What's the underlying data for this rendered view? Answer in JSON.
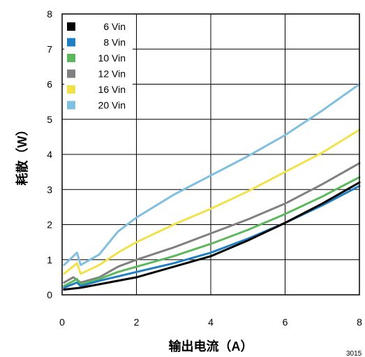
{
  "chart_data": {
    "type": "line",
    "title": "",
    "xlabel": "输出电流（A）",
    "ylabel": "耗散（W）",
    "xlim": [
      0,
      8
    ],
    "ylim": [
      0,
      8
    ],
    "xticks": [
      0,
      2,
      4,
      6,
      8
    ],
    "yticks": [
      0,
      1,
      2,
      3,
      4,
      5,
      6,
      7,
      8
    ],
    "grid": true,
    "legend_position": "top-left",
    "figure_code": "3015",
    "series": [
      {
        "name": "6 Vin",
        "color": "#000000",
        "x": [
          0.05,
          0.5,
          1,
          2,
          3,
          4,
          5,
          6,
          7,
          8
        ],
        "y": [
          0.15,
          0.2,
          0.3,
          0.5,
          0.8,
          1.1,
          1.55,
          2.05,
          2.6,
          3.2
        ]
      },
      {
        "name": "8 Vin",
        "color": "#1f7fc4",
        "x": [
          0.05,
          0.4,
          0.5,
          1,
          2,
          3,
          4,
          5,
          6,
          7,
          8
        ],
        "y": [
          0.2,
          0.35,
          0.25,
          0.4,
          0.65,
          0.9,
          1.2,
          1.6,
          2.05,
          2.55,
          3.1
        ]
      },
      {
        "name": "10 Vin",
        "color": "#5cb85c",
        "x": [
          0.05,
          0.4,
          0.5,
          1,
          1.5,
          2,
          3,
          4,
          5,
          6,
          7,
          8
        ],
        "y": [
          0.25,
          0.45,
          0.3,
          0.45,
          0.65,
          0.8,
          1.1,
          1.45,
          1.85,
          2.3,
          2.8,
          3.35
        ]
      },
      {
        "name": "12 Vin",
        "color": "#808080",
        "x": [
          0.05,
          0.3,
          0.5,
          1,
          1.5,
          2,
          3,
          4,
          5,
          6,
          7,
          8
        ],
        "y": [
          0.35,
          0.5,
          0.35,
          0.5,
          0.8,
          1.0,
          1.35,
          1.75,
          2.15,
          2.6,
          3.15,
          3.75
        ]
      },
      {
        "name": "16 Vin",
        "color": "#f2e24a",
        "x": [
          0.05,
          0.4,
          0.5,
          1,
          1.5,
          2,
          3,
          4,
          5,
          6,
          7,
          8
        ],
        "y": [
          0.6,
          0.9,
          0.6,
          0.85,
          1.2,
          1.5,
          2.0,
          2.45,
          2.95,
          3.5,
          4.05,
          4.7
        ]
      },
      {
        "name": "20 Vin",
        "color": "#7fbfdf",
        "x": [
          0.05,
          0.4,
          0.5,
          1,
          1.5,
          2,
          3,
          4,
          5,
          6,
          7,
          8
        ],
        "y": [
          0.85,
          1.2,
          0.85,
          1.15,
          1.8,
          2.2,
          2.85,
          3.4,
          3.95,
          4.55,
          5.25,
          6.0
        ]
      }
    ]
  }
}
